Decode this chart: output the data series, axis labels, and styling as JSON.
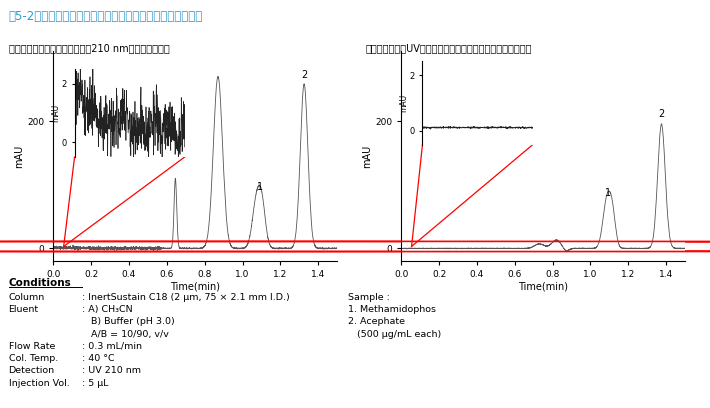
{
  "title": "嘷5-2　緩衝液の種類を変えることによるノイズ低減の一例",
  "title_color": "#3399cc",
  "left_subtitle": "溶離液にギ酸緩衝液を使用して210 nmで検出した場合",
  "right_subtitle": "ギ酸の代わりにUV吸収の少ないリン酸緩衝液を使用した場合",
  "xlabel": "Time(min)",
  "ylabel": "mAU",
  "xlim": [
    0.0,
    1.5
  ],
  "ylim_main": [
    -20,
    310
  ],
  "bg_color": "#ffffff",
  "line_color": "#555555"
}
